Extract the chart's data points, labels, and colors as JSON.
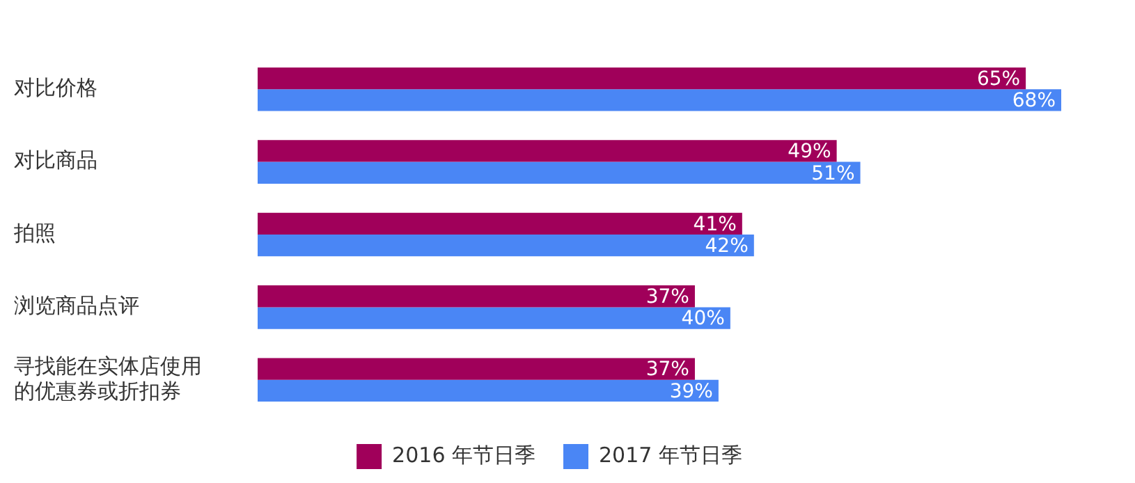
{
  "chart_data": {
    "type": "bar",
    "orientation": "horizontal",
    "categories": [
      "对比价格",
      "对比商品",
      "拍照",
      "浏览商品点评",
      "寻找能在实体店使用的优惠券或折扣券"
    ],
    "series": [
      {
        "name": "2016 年节日季",
        "color": "#a0005a",
        "values": [
          65,
          49,
          41,
          37,
          37
        ],
        "value_labels": [
          "65%",
          "49%",
          "41%",
          "37%",
          "37%"
        ]
      },
      {
        "name": "2017 年节日季",
        "color": "#4a86f5",
        "values": [
          68,
          51,
          42,
          40,
          39
        ],
        "value_labels": [
          "68%",
          "51%",
          "42%",
          "40%",
          "39%"
        ]
      }
    ],
    "tick_labels": "y",
    "legend": "bottom"
  }
}
